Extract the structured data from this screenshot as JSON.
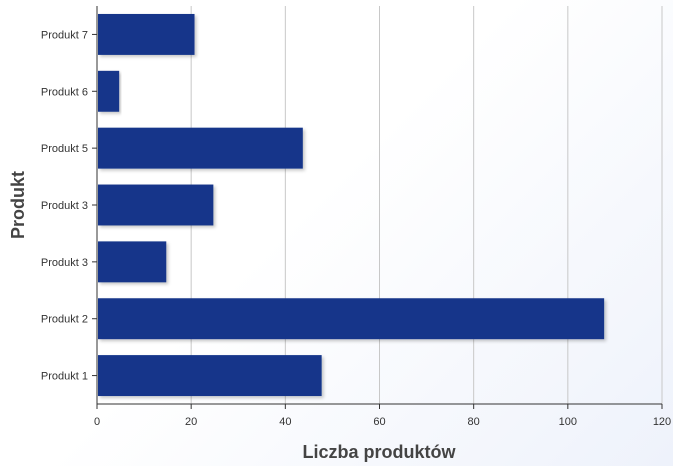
{
  "chart_data": {
    "type": "bar",
    "orientation": "horizontal",
    "categories": [
      "Produkt 1",
      "Produkt 2",
      "Produkt 3",
      "Produkt 3",
      "Produkt 5",
      "Produkt 6",
      "Produkt 7"
    ],
    "values": [
      47.5,
      107.5,
      14.5,
      24.5,
      43.5,
      4.5,
      20.5
    ],
    "xlabel": "Liczba produktów",
    "ylabel": "Produkt",
    "xlim": [
      0,
      120
    ],
    "xticks": [
      0,
      20,
      40,
      60,
      80,
      100,
      120
    ],
    "grid": true,
    "bar_color": "#14368a",
    "legend": "none"
  }
}
